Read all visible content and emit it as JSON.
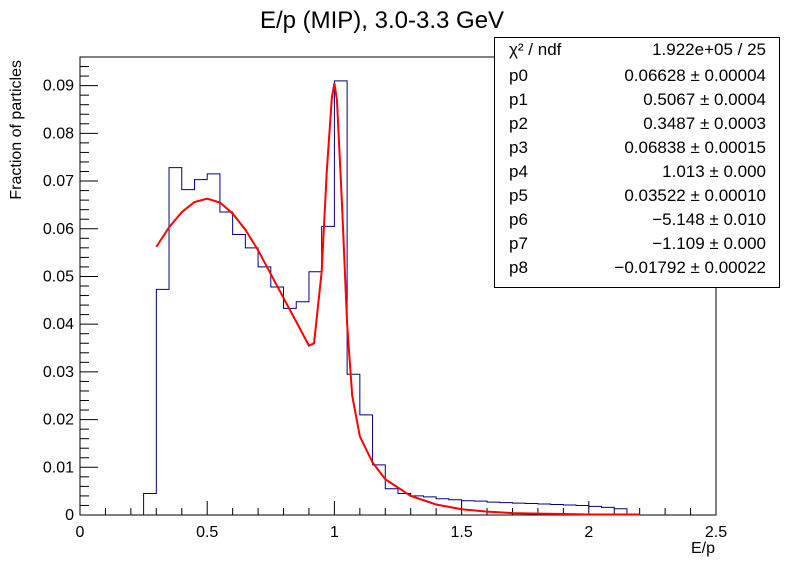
{
  "chart_data": {
    "type": "histogram",
    "title": "E/p (MIP), 3.0-3.3 GeV",
    "xlabel": "E/p",
    "ylabel": "Fraction of particles",
    "xlim": [
      0,
      2.5
    ],
    "ylim": [
      0,
      0.096
    ],
    "x_ticks": [
      0,
      0.5,
      1,
      1.5,
      2,
      2.5
    ],
    "x_tick_labels": [
      "0",
      "0.5",
      "1",
      "1.5",
      "2",
      "2.5"
    ],
    "y_ticks": [
      0,
      0.01,
      0.02,
      0.03,
      0.04,
      0.05,
      0.06,
      0.07,
      0.08,
      0.09
    ],
    "y_tick_labels": [
      "0",
      "0.01",
      "0.02",
      "0.03",
      "0.04",
      "0.05",
      "0.06",
      "0.07",
      "0.08",
      "0.09"
    ],
    "grid": false,
    "histogram": {
      "bin_edges": [
        0.25,
        0.3,
        0.35,
        0.4,
        0.45,
        0.5,
        0.55,
        0.6,
        0.65,
        0.7,
        0.75,
        0.8,
        0.85,
        0.9,
        0.95,
        1.0,
        1.05,
        1.1,
        1.15,
        1.2,
        1.25,
        1.3,
        1.35,
        1.4,
        1.45,
        1.5,
        1.55,
        1.6,
        1.65,
        1.7,
        1.75,
        1.8,
        1.85,
        1.9,
        1.95,
        2.0,
        2.05,
        2.1,
        2.15
      ],
      "values": [
        0.0045,
        0.0473,
        0.0728,
        0.0682,
        0.0703,
        0.0715,
        0.0635,
        0.0588,
        0.056,
        0.052,
        0.0478,
        0.0433,
        0.0447,
        0.051,
        0.0605,
        0.091,
        0.0295,
        0.021,
        0.0105,
        0.0055,
        0.0045,
        0.004,
        0.0038,
        0.0034,
        0.0032,
        0.003,
        0.0029,
        0.0027,
        0.0026,
        0.0025,
        0.0024,
        0.0023,
        0.0022,
        0.0021,
        0.002,
        0.0018,
        0.0016,
        0.0013
      ],
      "color": "#000080"
    },
    "fit_curve": {
      "color": "#ff0000",
      "x": [
        0.3,
        0.35,
        0.4,
        0.45,
        0.5,
        0.55,
        0.6,
        0.65,
        0.7,
        0.75,
        0.8,
        0.85,
        0.9,
        0.92,
        0.95,
        0.97,
        0.99,
        1.0,
        1.01,
        1.03,
        1.05,
        1.07,
        1.1,
        1.15,
        1.2,
        1.3,
        1.4,
        1.5,
        1.6,
        1.7,
        1.8,
        1.9,
        2.0,
        2.1,
        2.2
      ],
      "y": [
        0.0562,
        0.0603,
        0.0635,
        0.0656,
        0.0663,
        0.0655,
        0.0632,
        0.0598,
        0.0555,
        0.0505,
        0.0455,
        0.0405,
        0.0355,
        0.036,
        0.051,
        0.072,
        0.0875,
        0.0905,
        0.087,
        0.065,
        0.04,
        0.025,
        0.0165,
        0.011,
        0.0075,
        0.004,
        0.0022,
        0.0012,
        0.0007,
        0.0004,
        0.0003,
        0.0002,
        0.0001,
        0.0001,
        0.0001
      ]
    },
    "stats": [
      {
        "name": "χ² / ndf",
        "value": "1.922e+05 / 25"
      },
      {
        "name": "p0",
        "value": "0.06628 ± 0.00004"
      },
      {
        "name": "p1",
        "value": "0.5067 ± 0.0004"
      },
      {
        "name": "p2",
        "value": "0.3487 ± 0.0003"
      },
      {
        "name": "p3",
        "value": "0.06838 ± 0.00015"
      },
      {
        "name": "p4",
        "value": "1.013 ± 0.000"
      },
      {
        "name": "p5",
        "value": "0.03522 ± 0.00010"
      },
      {
        "name": "p6",
        "value": "−5.148 ± 0.010"
      },
      {
        "name": "p7",
        "value": "−1.109 ± 0.000"
      },
      {
        "name": "p8",
        "value": "−0.01792 ± 0.00022"
      }
    ]
  }
}
